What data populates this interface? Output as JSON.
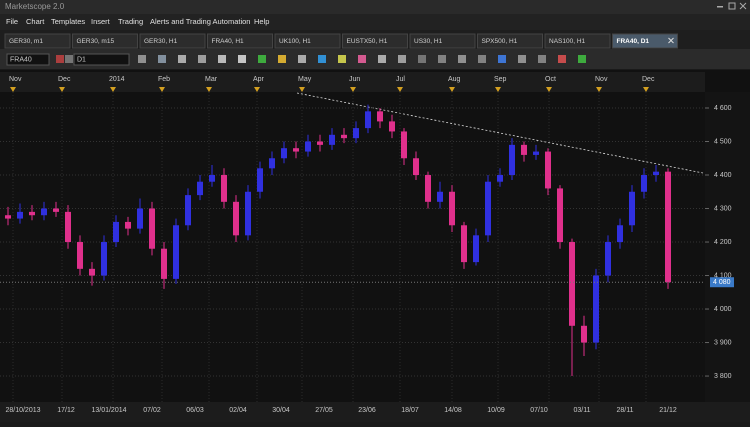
{
  "app_title": "Marketscope 2.0",
  "menu": [
    "File",
    "Chart",
    "Templates",
    "Insert",
    "Trading",
    "Alerts and Trading Automation",
    "Help"
  ],
  "tabs": [
    "GER30, m1",
    "GER30, m15",
    "GER30, H1",
    "FRA40, H1",
    "UK100, H1",
    "EUSTX50, H1",
    "US30, H1",
    "SPX500, H1",
    "NAS100, H1",
    "FRA40, D1"
  ],
  "toolbar": {
    "symbol": "FRA40",
    "timeframe": "D1"
  },
  "chart_data": {
    "type": "candlestick",
    "top_labels": [
      "Nov",
      "Dec",
      "2014",
      "Feb",
      "Mar",
      "Apr",
      "May",
      "Jun",
      "Jul",
      "Aug",
      "Sep",
      "Oct",
      "Nov",
      "Dec"
    ],
    "bottom_labels": [
      "28/10/2013",
      "17/12",
      "13/01/2014",
      "07/02",
      "06/03",
      "02/04",
      "30/04",
      "27/05",
      "23/06",
      "18/07",
      "14/08",
      "10/09",
      "07/10",
      "03/11",
      "28/11",
      "21/12"
    ],
    "up_color": "#3030e0",
    "down_color": "#e0308c",
    "open": [
      4280,
      4270,
      4290,
      4280,
      4300,
      4290,
      4200,
      4120,
      4100,
      4200,
      4260,
      4240,
      4300,
      4180,
      4090,
      4250,
      4340,
      4380,
      4400,
      4320,
      4220,
      4350,
      4420,
      4450,
      4480,
      4470,
      4500,
      4490,
      4520,
      4510,
      4540,
      4590,
      4560,
      4530,
      4450,
      4400,
      4320,
      4350,
      4250,
      4140,
      4220,
      4380,
      4400,
      4490,
      4460,
      4470,
      4360,
      4200,
      3950,
      3900,
      4100,
      4200,
      4250,
      4350,
      4400,
      4410
    ],
    "high": [
      4305,
      4315,
      4310,
      4320,
      4320,
      4310,
      4220,
      4140,
      4220,
      4280,
      4275,
      4330,
      4320,
      4200,
      4270,
      4360,
      4400,
      4430,
      4420,
      4340,
      4370,
      4440,
      4470,
      4500,
      4500,
      4520,
      4520,
      4540,
      4540,
      4560,
      4610,
      4600,
      4580,
      4540,
      4470,
      4410,
      4380,
      4370,
      4260,
      4240,
      4400,
      4420,
      4510,
      4500,
      4490,
      4480,
      4370,
      4210,
      3980,
      4120,
      4220,
      4270,
      4370,
      4420,
      4430,
      4420
    ],
    "low": [
      4250,
      4255,
      4265,
      4265,
      4275,
      4180,
      4100,
      4070,
      4085,
      4185,
      4220,
      4225,
      4160,
      4060,
      4075,
      4235,
      4325,
      4365,
      4300,
      4200,
      4205,
      4330,
      4400,
      4435,
      4450,
      4455,
      4470,
      4475,
      4495,
      4495,
      4525,
      4540,
      4510,
      4430,
      4385,
      4300,
      4300,
      4230,
      4120,
      4130,
      4200,
      4365,
      4385,
      4440,
      4445,
      4340,
      4180,
      3800,
      3860,
      3880,
      4080,
      4180,
      4230,
      4330,
      4380,
      4060
    ],
    "close": [
      4270,
      4290,
      4280,
      4300,
      4290,
      4200,
      4120,
      4100,
      4200,
      4260,
      4240,
      4300,
      4180,
      4090,
      4250,
      4340,
      4380,
      4400,
      4320,
      4220,
      4350,
      4420,
      4450,
      4480,
      4470,
      4500,
      4490,
      4520,
      4510,
      4540,
      4590,
      4560,
      4530,
      4450,
      4400,
      4320,
      4350,
      4250,
      4140,
      4220,
      4380,
      4400,
      4490,
      4460,
      4470,
      4360,
      4200,
      3950,
      3900,
      4100,
      4200,
      4250,
      4350,
      4400,
      4410,
      4080
    ],
    "ylim": [
      3730,
      4640
    ],
    "yticks": [
      {
        "value": 3800,
        "label": "3 800"
      },
      {
        "value": 3900,
        "label": "3 900"
      },
      {
        "value": 4000,
        "label": "4 000"
      },
      {
        "value": 4100,
        "label": "4 100"
      },
      {
        "value": 4200,
        "label": "4 200"
      },
      {
        "value": 4300,
        "label": "4 300"
      },
      {
        "value": 4400,
        "label": "4 400"
      },
      {
        "value": 4500,
        "label": "4 500"
      },
      {
        "value": 4600,
        "label": "4 600"
      }
    ],
    "price_marker": {
      "value": 4080,
      "label": "4 080"
    },
    "grid": true
  }
}
